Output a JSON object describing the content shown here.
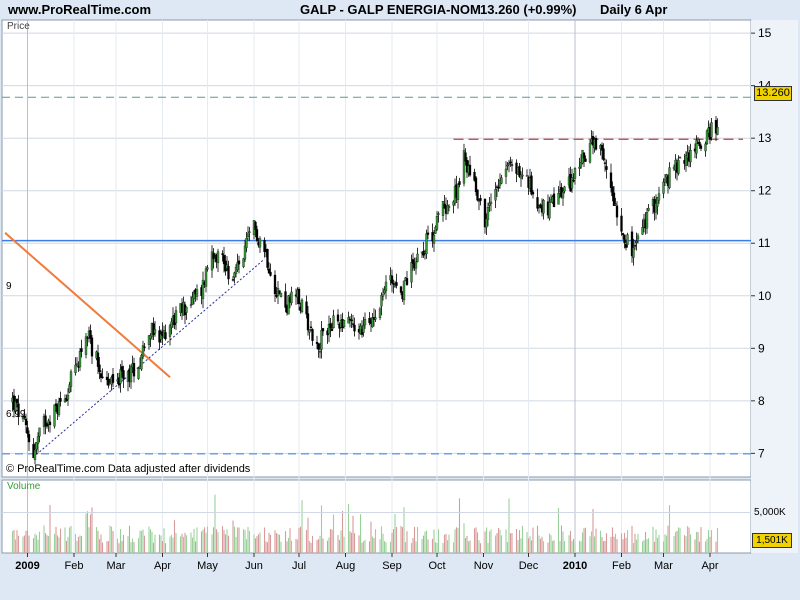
{
  "header": {
    "site": "www.ProRealTime.com",
    "symbol": "GALP - GALP ENERGIA-NOM",
    "last_change": "13.260 (+0.99%)",
    "period": "Daily  6 Apr"
  },
  "price_panel": {
    "label": "Price",
    "credit": "© ProRealTime.com  Data adjusted after dividends",
    "last_price_badge": "13.260",
    "left_labels": [
      "9",
      "6.99"
    ]
  },
  "volume_panel": {
    "label": "Volume",
    "axis_label": "5,000K",
    "last_volume_badge": "1,501K"
  },
  "colors": {
    "background": "#dde8f4",
    "panel": "#ffffff",
    "up_candle": "#3a9a3a",
    "down_candle": "#000000",
    "support_line": "#3a7de8",
    "resistance_line": "#c83c3c",
    "downtrend_line": "#f07a3a",
    "volume_bar": "#d89a9a",
    "volume_bar_hi": "#9ad09a"
  },
  "chart_data": {
    "type": "candlestick",
    "ylim": [
      6.55,
      15.25
    ],
    "yticks": [
      7,
      8,
      9,
      10,
      11,
      12,
      13,
      14,
      15
    ],
    "xticks": [
      "2009",
      "Feb",
      "Mar",
      "Apr",
      "May",
      "Jun",
      "Jul",
      "Aug",
      "Sep",
      "Oct",
      "Nov",
      "Dec",
      "2010",
      "Feb",
      "Mar",
      "Apr"
    ],
    "price_path": [
      [
        "2008-12-22",
        8.0
      ],
      [
        "2008-12-29",
        7.6
      ],
      [
        "2009-01-05",
        7.0
      ],
      [
        "2009-01-12",
        7.6
      ],
      [
        "2009-01-19",
        7.8
      ],
      [
        "2009-01-26",
        8.1
      ],
      [
        "2009-02-02",
        8.6
      ],
      [
        "2009-02-09",
        9.3
      ],
      [
        "2009-02-16",
        8.8
      ],
      [
        "2009-02-23",
        8.3
      ],
      [
        "2009-03-02",
        8.4
      ],
      [
        "2009-03-09",
        8.5
      ],
      [
        "2009-03-16",
        8.7
      ],
      [
        "2009-03-23",
        9.4
      ],
      [
        "2009-03-30",
        9.1
      ],
      [
        "2009-04-06",
        9.5
      ],
      [
        "2009-04-13",
        9.7
      ],
      [
        "2009-04-20",
        9.9
      ],
      [
        "2009-04-27",
        10.1
      ],
      [
        "2009-05-04",
        10.9
      ],
      [
        "2009-05-11",
        10.7
      ],
      [
        "2009-05-18",
        10.3
      ],
      [
        "2009-05-25",
        10.8
      ],
      [
        "2009-06-01",
        11.3
      ],
      [
        "2009-06-08",
        10.9
      ],
      [
        "2009-06-15",
        10.2
      ],
      [
        "2009-06-22",
        9.8
      ],
      [
        "2009-06-29",
        10.0
      ],
      [
        "2009-07-06",
        9.6
      ],
      [
        "2009-07-13",
        9.0
      ],
      [
        "2009-07-20",
        9.4
      ],
      [
        "2009-07-27",
        9.5
      ],
      [
        "2009-08-03",
        9.6
      ],
      [
        "2009-08-10",
        9.3
      ],
      [
        "2009-08-17",
        9.5
      ],
      [
        "2009-08-24",
        9.9
      ],
      [
        "2009-08-31",
        10.4
      ],
      [
        "2009-09-07",
        10.0
      ],
      [
        "2009-09-14",
        10.6
      ],
      [
        "2009-09-21",
        10.9
      ],
      [
        "2009-09-28",
        11.2
      ],
      [
        "2009-10-05",
        11.7
      ],
      [
        "2009-10-12",
        11.8
      ],
      [
        "2009-10-19",
        12.6
      ],
      [
        "2009-10-26",
        12.2
      ],
      [
        "2009-11-02",
        11.4
      ],
      [
        "2009-11-09",
        12.1
      ],
      [
        "2009-11-16",
        12.5
      ],
      [
        "2009-11-23",
        12.4
      ],
      [
        "2009-11-30",
        12.2
      ],
      [
        "2009-12-07",
        11.8
      ],
      [
        "2009-12-14",
        11.6
      ],
      [
        "2009-12-21",
        11.9
      ],
      [
        "2009-12-28",
        12.1
      ],
      [
        "2010-01-04",
        12.5
      ],
      [
        "2010-01-11",
        12.9
      ],
      [
        "2010-01-18",
        12.7
      ],
      [
        "2010-01-25",
        12.1
      ],
      [
        "2010-02-01",
        11.3
      ],
      [
        "2010-02-08",
        10.8
      ],
      [
        "2010-02-15",
        11.3
      ],
      [
        "2010-02-22",
        11.7
      ],
      [
        "2010-03-01",
        12.1
      ],
      [
        "2010-03-08",
        12.4
      ],
      [
        "2010-03-15",
        12.6
      ],
      [
        "2010-03-22",
        12.8
      ],
      [
        "2010-03-29",
        13.0
      ],
      [
        "2010-04-06",
        13.26
      ]
    ],
    "overlays": {
      "support_level": 11.05,
      "resistance_level": 12.98,
      "upper_dashed_level": 13.78,
      "lower_dashed_level": 6.99,
      "downtrend": [
        [
          "2008-12-17",
          11.2
        ],
        [
          "2009-04-06",
          8.45
        ]
      ],
      "uptrend_dotted": [
        [
          "2009-01-05",
          6.93
        ],
        [
          "2009-06-08",
          10.7
        ]
      ]
    }
  }
}
